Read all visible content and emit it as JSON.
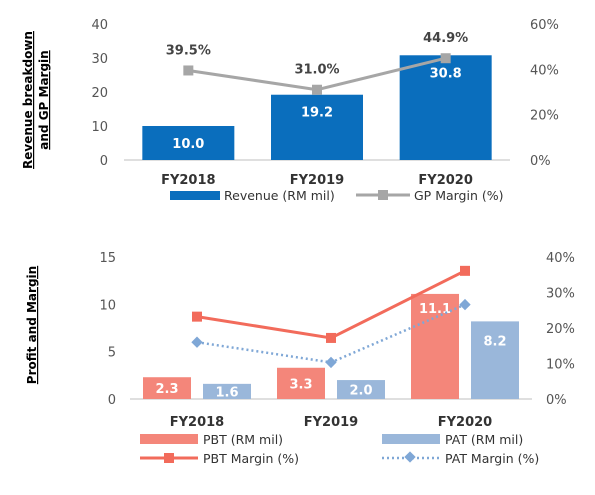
{
  "chart_data": [
    {
      "type": "bar",
      "ylabel": "Revenue breakdown and GP Margin",
      "ylabel_lines": [
        "Revenue breakdown",
        "and GP Margin"
      ],
      "categories": [
        "FY2018",
        "FY2019",
        "FY2020"
      ],
      "ylim": [
        0,
        40
      ],
      "yticks": [
        0,
        10,
        20,
        30,
        40
      ],
      "y2lim": [
        0,
        60
      ],
      "y2ticks": [
        "0%",
        "20%",
        "40%",
        "60%"
      ],
      "y2tick_values": [
        0,
        20,
        40,
        60
      ],
      "series": [
        {
          "name": "Revenue (RM mil)",
          "kind": "bar",
          "axis": "left",
          "color": "#0a6ebd",
          "values": [
            10.0,
            19.2,
            30.8
          ],
          "labels": [
            "10.0",
            "19.2",
            "30.8"
          ]
        },
        {
          "name": "GP Margin (%)",
          "kind": "line",
          "axis": "right",
          "color": "#a6a6a6",
          "marker": "square",
          "values": [
            39.5,
            31.0,
            44.9
          ],
          "labels": [
            "39.5%",
            "31.0%",
            "44.9%"
          ]
        }
      ],
      "legend": "bottom"
    },
    {
      "type": "bar",
      "ylabel": "Profit and Margin",
      "categories": [
        "FY2018",
        "FY2019",
        "FY2020"
      ],
      "ylim": [
        0,
        15
      ],
      "yticks": [
        0,
        5,
        10,
        15
      ],
      "y2lim": [
        0,
        40
      ],
      "y2ticks": [
        "0%",
        "10%",
        "20%",
        "30%",
        "40%"
      ],
      "y2tick_values": [
        0,
        10,
        20,
        30,
        40
      ],
      "series": [
        {
          "name": "PBT (RM mil)",
          "kind": "bar",
          "axis": "left",
          "color": "#f4867a",
          "values": [
            2.3,
            3.3,
            11.1
          ],
          "labels": [
            "2.3",
            "3.3",
            "11.1"
          ]
        },
        {
          "name": "PAT (RM mil)",
          "kind": "bar",
          "axis": "left",
          "color": "#9ab7da",
          "values": [
            1.6,
            2.0,
            8.2
          ],
          "labels": [
            "1.6",
            "2.0",
            "8.2"
          ]
        },
        {
          "name": "PBT Margin (%)",
          "kind": "line",
          "axis": "right",
          "color": "#f26b5b",
          "marker": "square",
          "values": [
            23.2,
            17.2,
            36.1
          ]
        },
        {
          "name": "PAT Margin (%)",
          "kind": "line",
          "axis": "right",
          "color": "#7fa7d6",
          "marker": "diamond",
          "dashed": true,
          "values": [
            16.0,
            10.3,
            26.6
          ]
        }
      ],
      "legend": "bottom"
    }
  ]
}
